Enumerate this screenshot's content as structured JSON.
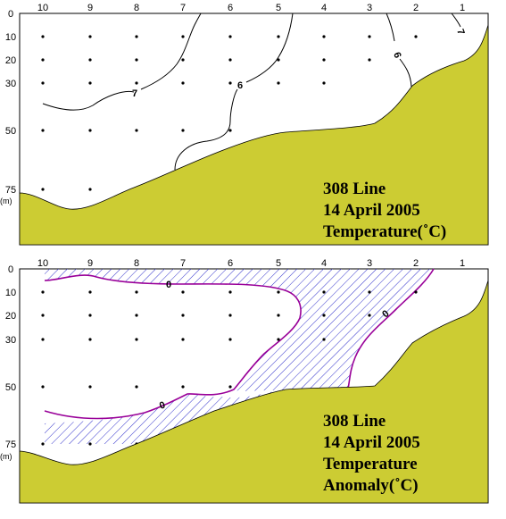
{
  "chart_data": [
    {
      "type": "contour",
      "title_lines": [
        "308 Line",
        "14 April 2005",
        "Temperature(˚C)"
      ],
      "x_ticks": [
        "10",
        "9",
        "8",
        "7",
        "6",
        "5",
        "4",
        "3",
        "2",
        "1"
      ],
      "y_ticks": [
        "0",
        "10",
        "20",
        "30",
        "50",
        "75"
      ],
      "y_unit": "(m)",
      "contour_labels": [
        "7",
        "6",
        "6",
        "7"
      ],
      "colors": {
        "seabed": "#cccc33",
        "contour": "#000000"
      }
    },
    {
      "type": "contour",
      "title_lines": [
        "308 Line",
        "14 April 2005",
        "Temperature",
        "Anomaly(˚C)"
      ],
      "x_ticks": [
        "10",
        "9",
        "8",
        "7",
        "6",
        "5",
        "4",
        "3",
        "2",
        "1"
      ],
      "y_ticks": [
        "0",
        "10",
        "20",
        "30",
        "50",
        "75"
      ],
      "y_unit": "(m)",
      "contour_labels": [
        "0",
        "0",
        "0"
      ],
      "colors": {
        "seabed": "#cccc33",
        "contour": "#990099",
        "hatch": "#3333cc"
      }
    }
  ]
}
